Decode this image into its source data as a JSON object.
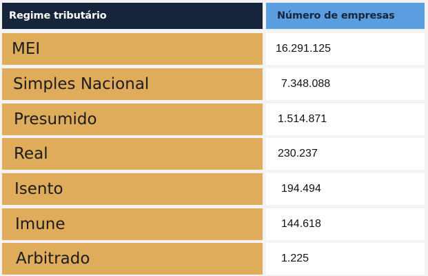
{
  "header": {
    "col1": "Regime tributário",
    "col2": "Número de empresas"
  },
  "rows": [
    {
      "regime": "MEI",
      "count": "16.291.125"
    },
    {
      "regime": "Simples Nacional",
      "count": "7.348.088"
    },
    {
      "regime": "Presumido",
      "count": "1.514.871"
    },
    {
      "regime": "Real",
      "count": "230.237"
    },
    {
      "regime": "Isento",
      "count": "194.494"
    },
    {
      "regime": "Imune",
      "count": "144.618"
    },
    {
      "regime": "Arbitrado",
      "count": "1.225"
    }
  ],
  "colors": {
    "header_left_bg": "#16253a",
    "header_right_bg": "#5a9ee0",
    "label_cell_bg": "#dfac5c",
    "value_cell_bg": "#ffffff"
  }
}
